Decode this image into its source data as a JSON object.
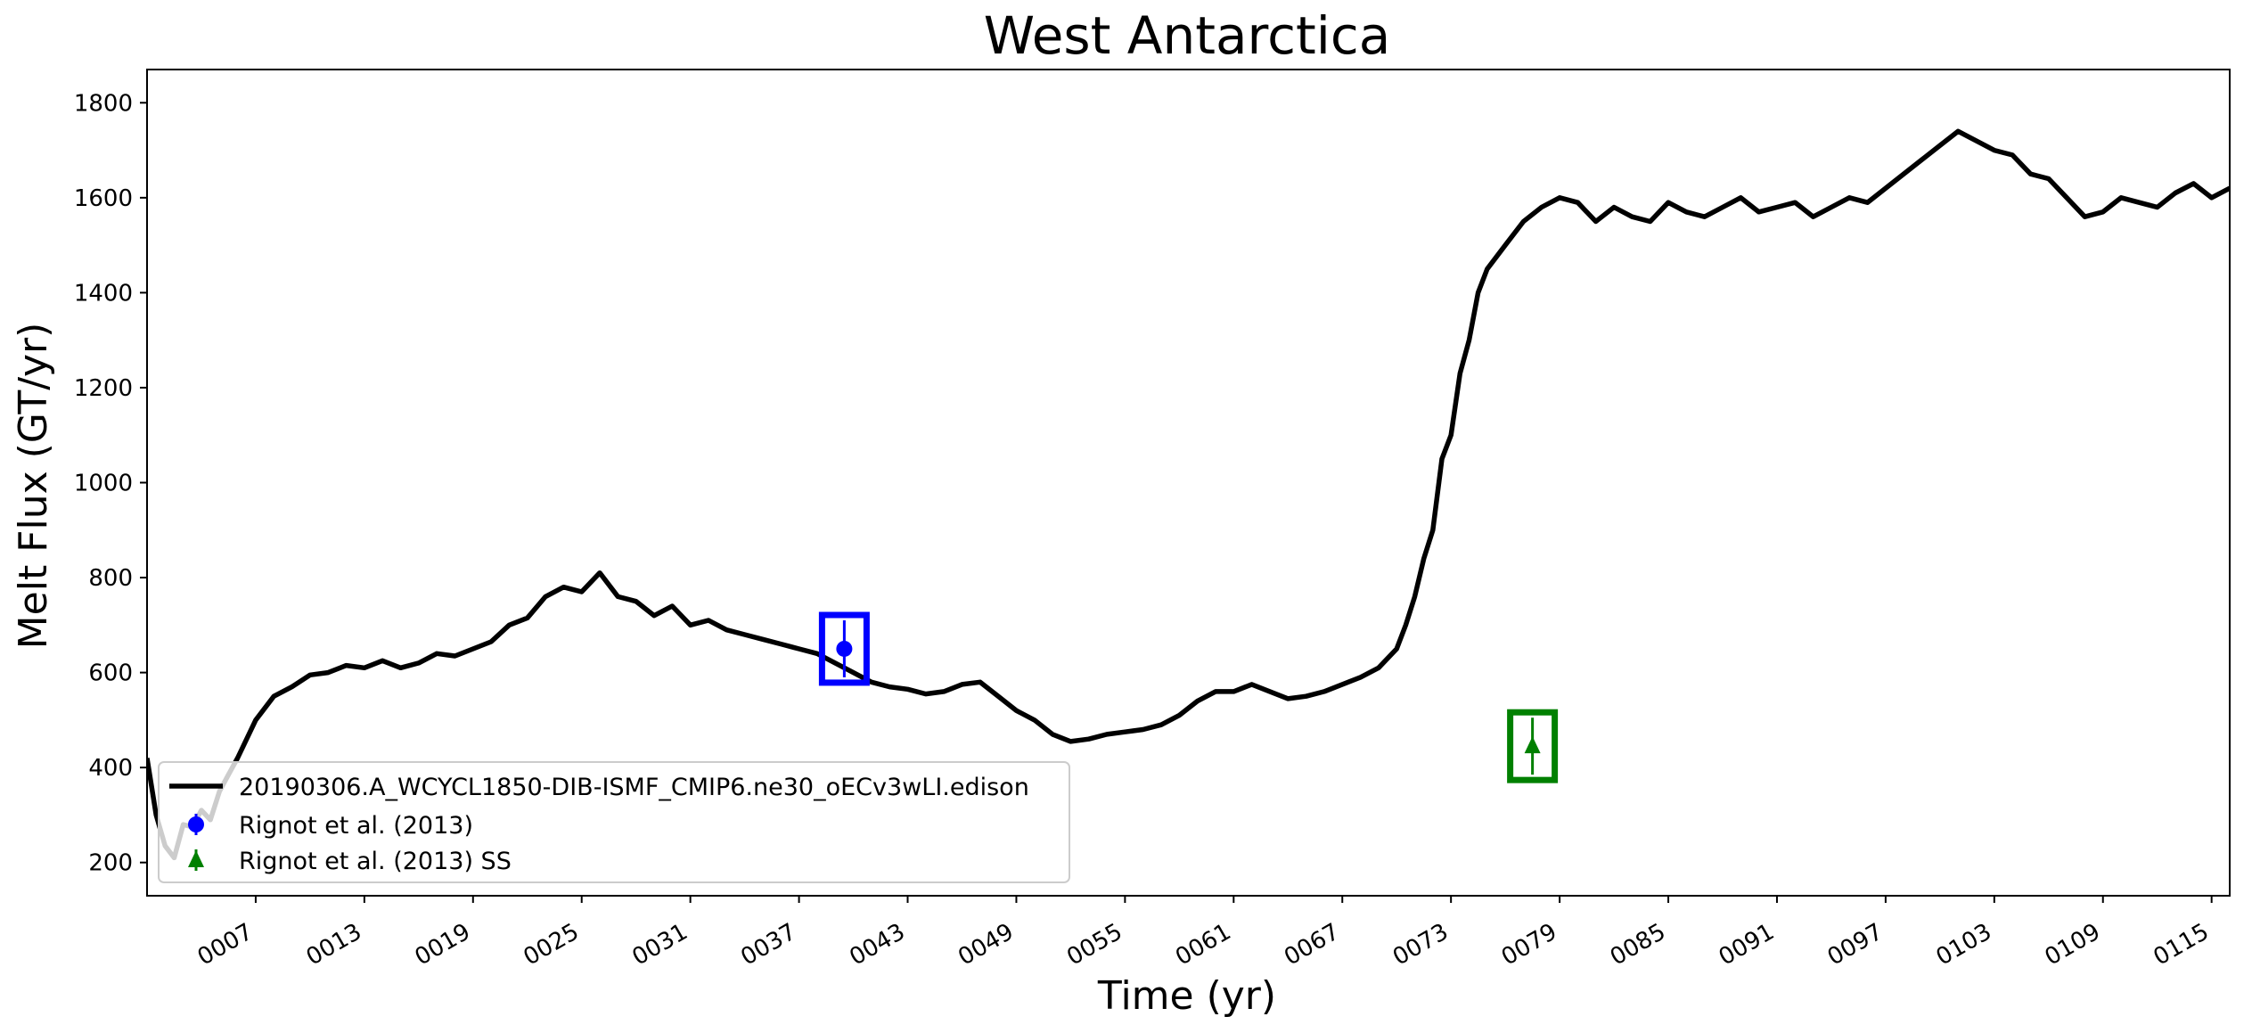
{
  "chart_data": {
    "type": "line",
    "title": "West Antarctica",
    "xlabel": "Time (yr)",
    "ylabel": "Melt Flux (GT/yr)",
    "xlim": [
      1,
      116
    ],
    "ylim": [
      130,
      1870
    ],
    "x_ticks": [
      7,
      13,
      19,
      25,
      31,
      37,
      43,
      49,
      55,
      61,
      67,
      73,
      79,
      85,
      91,
      97,
      103,
      109,
      115
    ],
    "x_tick_labels": [
      "0007",
      "0013",
      "0019",
      "0025",
      "0031",
      "0037",
      "0043",
      "0049",
      "0055",
      "0061",
      "0067",
      "0073",
      "0079",
      "0085",
      "0091",
      "0097",
      "0103",
      "0109",
      "0115"
    ],
    "y_ticks": [
      200,
      400,
      600,
      800,
      1000,
      1200,
      1400,
      1600,
      1800
    ],
    "y_tick_labels": [
      "200",
      "400",
      "600",
      "800",
      "1000",
      "1200",
      "1400",
      "1600",
      "1800"
    ],
    "grid": false,
    "legend_position": "bottom-left",
    "series": [
      {
        "name": "20190306.A_WCYCL1850-DIB-ISMF_CMIP6.ne30_oECv3wLI.edison",
        "color": "#000000",
        "x": [
          1,
          1.5,
          2,
          2.5,
          3,
          3.5,
          4,
          4.5,
          5,
          5.5,
          6,
          7,
          8,
          9,
          10,
          11,
          12,
          13,
          14,
          15,
          16,
          17,
          18,
          19,
          20,
          21,
          22,
          23,
          24,
          25,
          26,
          27,
          28,
          29,
          30,
          31,
          32,
          33,
          34,
          35,
          36,
          37,
          38,
          39,
          40,
          41,
          42,
          43,
          44,
          45,
          46,
          47,
          48,
          49,
          50,
          51,
          52,
          53,
          54,
          55,
          56,
          57,
          58,
          59,
          60,
          61,
          62,
          63,
          64,
          65,
          66,
          67,
          68,
          69,
          70,
          70.5,
          71,
          71.5,
          72,
          72.5,
          73,
          73.5,
          74,
          74.5,
          75,
          76,
          77,
          78,
          79,
          80,
          81,
          82,
          83,
          84,
          85,
          86,
          87,
          88,
          89,
          90,
          91,
          92,
          93,
          94,
          95,
          96,
          97,
          98,
          99,
          100,
          101,
          102,
          103,
          104,
          105,
          106,
          107,
          108,
          109,
          110,
          111,
          112,
          113,
          114,
          115,
          116
        ],
        "values": [
          420,
          300,
          235,
          210,
          280,
          275,
          310,
          290,
          350,
          385,
          420,
          500,
          550,
          570,
          595,
          600,
          615,
          610,
          625,
          610,
          620,
          640,
          635,
          650,
          665,
          700,
          715,
          760,
          780,
          770,
          810,
          760,
          750,
          720,
          740,
          700,
          710,
          690,
          680,
          670,
          660,
          650,
          640,
          620,
          600,
          580,
          570,
          565,
          555,
          560,
          575,
          580,
          550,
          520,
          500,
          470,
          455,
          460,
          470,
          475,
          480,
          490,
          510,
          540,
          560,
          560,
          575,
          560,
          545,
          550,
          560,
          575,
          590,
          610,
          650,
          700,
          760,
          840,
          900,
          1050,
          1100,
          1230,
          1300,
          1400,
          1450,
          1500,
          1550,
          1580,
          1600,
          1590,
          1550,
          1580,
          1560,
          1550,
          1590,
          1570,
          1560,
          1580,
          1600,
          1570,
          1580,
          1590,
          1560,
          1580,
          1600,
          1590,
          1620,
          1650,
          1680,
          1710,
          1740,
          1720,
          1700,
          1690,
          1650,
          1640,
          1600,
          1560,
          1570,
          1600,
          1590,
          1580,
          1610,
          1630,
          1600,
          1620
        ]
      }
    ],
    "observations": [
      {
        "name": "Rignot et al. (2013)",
        "color": "#0000ff",
        "marker": "circle",
        "x": 39.5,
        "value": 650,
        "err_low": 590,
        "err_high": 710
      },
      {
        "name": "Rignot et al. (2013) SS",
        "color": "#008000",
        "marker": "triangle",
        "x": 77.5,
        "value": 445,
        "err_low": 385,
        "err_high": 505
      }
    ]
  }
}
